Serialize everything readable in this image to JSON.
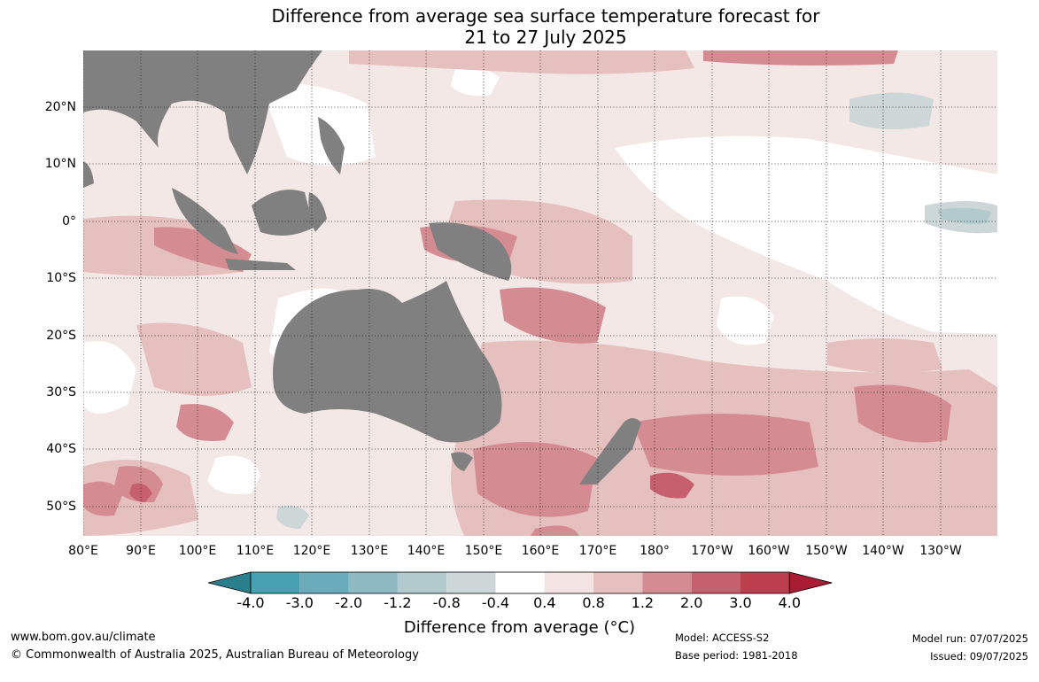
{
  "title": {
    "line1": "Difference from average sea surface temperature forecast for",
    "line2": "21 to 27 July 2025"
  },
  "map": {
    "lat_labels": [
      "20°N",
      "10°N",
      "0°",
      "10°S",
      "20°S",
      "30°S",
      "40°S",
      "50°S"
    ],
    "lon_labels": [
      "80°E",
      "90°E",
      "100°E",
      "110°E",
      "120°E",
      "130°E",
      "140°E",
      "150°E",
      "160°E",
      "170°E",
      "180°",
      "170°W",
      "160°W",
      "150°W",
      "140°W",
      "130°W"
    ],
    "land_color": "#808080",
    "grid_style": "dotted"
  },
  "colorbar": {
    "ticks": [
      "-4.0",
      "-3.0",
      "-2.0",
      "-1.2",
      "-0.8",
      "-0.4",
      "0.4",
      "0.8",
      "1.2",
      "2.0",
      "3.0",
      "4.0"
    ],
    "colors": [
      "#2b7f8c",
      "#46a1b2",
      "#6aacbb",
      "#8fbac4",
      "#b2c9cd",
      "#cdd7d8",
      "#ffffff",
      "#f4e4e3",
      "#e6c0be",
      "#d48b92",
      "#c6606e",
      "#bd3f4d",
      "#a91c34"
    ],
    "title": "Difference from average (°C)"
  },
  "footer": {
    "site": "www.bom.gov.au/climate",
    "copyright": "© Commonwealth of Australia 2025, Australian Bureau of Meteorology",
    "model": "Model: ACCESS-S2",
    "base_period": "Base period: 1981-2018",
    "model_run": "Model run: 07/07/2025",
    "issued": "Issued: 09/07/2025"
  }
}
